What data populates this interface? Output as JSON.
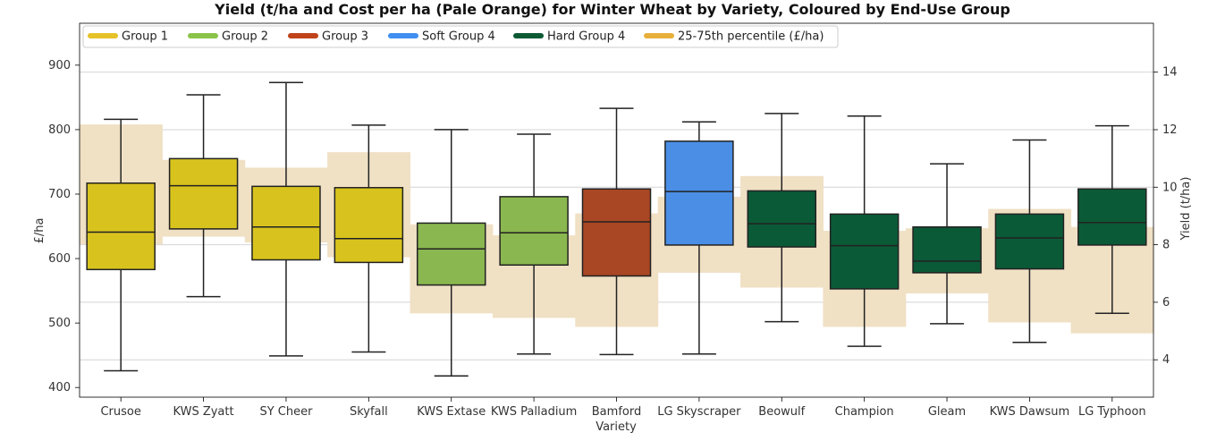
{
  "chart_data": {
    "type": "box",
    "title": "Yield (t/ha and Cost per ha (Pale Orange) for Winter Wheat by Variety, Coloured by End-Use Group",
    "xlabel": "Variety",
    "ylabel_left": "£/ha",
    "ylabel_right": "Yield (t/ha)",
    "ylim_left": [
      385,
      965
    ],
    "ylim_right": [
      2.7,
      15.7
    ],
    "yticks_left": [
      400,
      500,
      600,
      700,
      800,
      900
    ],
    "yticks_right": [
      4,
      6,
      8,
      10,
      12,
      14
    ],
    "legend": [
      {
        "label": "Group 1",
        "color": "#e6c229"
      },
      {
        "label": "Group 2",
        "color": "#8bc34a"
      },
      {
        "label": "Group 3",
        "color": "#c0431a"
      },
      {
        "label": "Soft Group 4",
        "color": "#3f8ff0"
      },
      {
        "label": "Hard Group 4",
        "color": "#0b5a33"
      },
      {
        "label": "25-75th percentile (£/ha)",
        "color": "#e8b03a"
      }
    ],
    "group_colors": {
      "Group 1": "#d8c31e",
      "Group 2": "#8ab74f",
      "Group 3": "#a94624",
      "Soft Group 4": "#4a8ee6",
      "Hard Group 4": "#0b5a37"
    },
    "band_color": "#f0e0c4",
    "categories": [
      "Crusoe",
      "KWS Zyatt",
      "SY Cheer",
      "Skyfall",
      "KWS Extase",
      "KWS Palladium",
      "Bamford",
      "LG Skyscraper",
      "Beowulf",
      "Champion",
      "Gleam",
      "KWS Dawsum",
      "LG Typhoon"
    ],
    "cost_band": [
      {
        "q1": 622,
        "q3": 808
      },
      {
        "q1": 634,
        "q3": 753
      },
      {
        "q1": 625,
        "q3": 741
      },
      {
        "q1": 602,
        "q3": 765
      },
      {
        "q1": 515,
        "q3": 653
      },
      {
        "q1": 508,
        "q3": 636
      },
      {
        "q1": 494,
        "q3": 670
      },
      {
        "q1": 578,
        "q3": 696
      },
      {
        "q1": 555,
        "q3": 728
      },
      {
        "q1": 494,
        "q3": 643
      },
      {
        "q1": 546,
        "q3": 647
      },
      {
        "q1": 501,
        "q3": 677
      },
      {
        "q1": 484,
        "q3": 649
      }
    ],
    "boxes": [
      {
        "group": "Group 1",
        "min": 426,
        "q1": 583,
        "median": 641,
        "q3": 717,
        "max": 816
      },
      {
        "group": "Group 1",
        "min": 541,
        "q1": 646,
        "median": 713,
        "q3": 755,
        "max": 854
      },
      {
        "group": "Group 1",
        "min": 449,
        "q1": 598,
        "median": 649,
        "q3": 712,
        "max": 873
      },
      {
        "group": "Group 1",
        "min": 455,
        "q1": 594,
        "median": 631,
        "q3": 710,
        "max": 807
      },
      {
        "group": "Group 2",
        "min": 418,
        "q1": 559,
        "median": 615,
        "q3": 655,
        "max": 800
      },
      {
        "group": "Group 2",
        "min": 452,
        "q1": 590,
        "median": 640,
        "q3": 696,
        "max": 793
      },
      {
        "group": "Group 3",
        "min": 451,
        "q1": 573,
        "median": 657,
        "q3": 708,
        "max": 833
      },
      {
        "group": "Soft Group 4",
        "min": 452,
        "q1": 621,
        "median": 704,
        "q3": 782,
        "max": 812
      },
      {
        "group": "Hard Group 4",
        "min": 502,
        "q1": 618,
        "median": 654,
        "q3": 705,
        "max": 825
      },
      {
        "group": "Hard Group 4",
        "min": 464,
        "q1": 553,
        "median": 620,
        "q3": 669,
        "max": 821
      },
      {
        "group": "Hard Group 4",
        "min": 499,
        "q1": 578,
        "median": 596,
        "q3": 649,
        "max": 747
      },
      {
        "group": "Hard Group 4",
        "min": 470,
        "q1": 584,
        "median": 632,
        "q3": 669,
        "max": 784
      },
      {
        "group": "Hard Group 4",
        "min": 515,
        "q1": 621,
        "median": 656,
        "q3": 708,
        "max": 806
      }
    ]
  }
}
